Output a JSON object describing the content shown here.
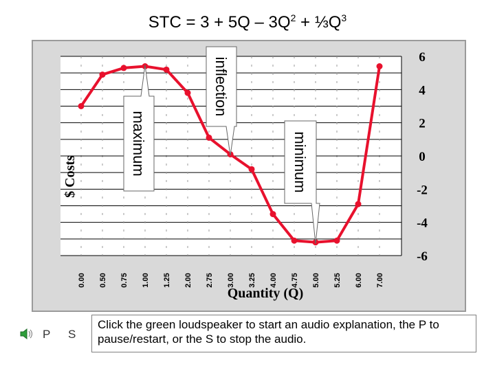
{
  "slide": {
    "title_main": "STC = 3 + 5Q – 3Q",
    "title_sq": "2",
    "title_mid": " + ⅓Q",
    "title_cube": "3",
    "caption": "Click the green loudspeaker to start an audio explanation, the P to pause/restart, or the S to stop the audio.",
    "pause_label": "P",
    "stop_label": "S",
    "speaker_icon": "loudspeaker-icon",
    "speaker_color": "#2e9e3a"
  },
  "chart_data": {
    "type": "line",
    "xlabel": "Quantity (Q)",
    "ylabel": "$ Costs",
    "categories": [
      "0.00",
      "0.50",
      "0.75",
      "1.00",
      "1.25",
      "2.00",
      "2.75",
      "3.00",
      "3.25",
      "4.00",
      "4.75",
      "5.00",
      "5.25",
      "6.00",
      "7.00"
    ],
    "series": [
      {
        "values": [
          3,
          4.9,
          5.3,
          5.4,
          5.2,
          3.8,
          1.1,
          0.1,
          -0.8,
          -3.5,
          -5.1,
          -5.2,
          -5.1,
          -2.9,
          5.4
        ]
      }
    ],
    "ylim": [
      -6,
      6
    ],
    "yticks": [
      "6",
      "4",
      "2",
      "0",
      "-2",
      "-4",
      "-6"
    ],
    "annotations": [
      {
        "text": "maximum",
        "category": "1.00"
      },
      {
        "text": "inflection",
        "category": "3.00"
      },
      {
        "text": "minimum",
        "category": "5.00"
      }
    ],
    "grid": true,
    "line_color": "#e8112d",
    "axis_side": "right"
  }
}
